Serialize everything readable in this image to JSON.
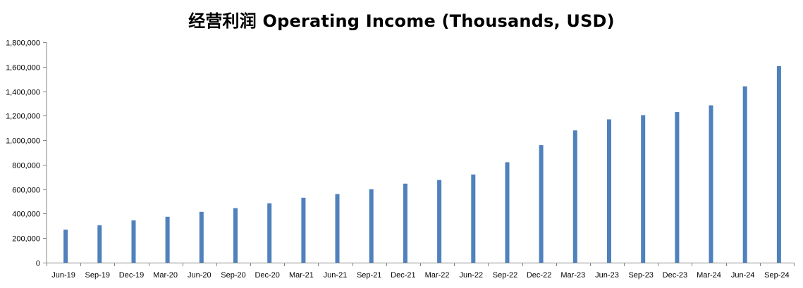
{
  "chart_data": {
    "type": "bar",
    "title": "经营利润 Operating Income (Thousands, USD)",
    "xlabel": "",
    "ylabel": "",
    "ylim": [
      0,
      1800000
    ],
    "yticks": [
      "0",
      "200,000",
      "400,000",
      "600,000",
      "800,000",
      "1,000,000",
      "1,200,000",
      "1,400,000",
      "1,600,000",
      "1,800,000"
    ],
    "ytick_values": [
      0,
      200000,
      400000,
      600000,
      800000,
      1000000,
      1200000,
      1400000,
      1600000,
      1800000
    ],
    "categories": [
      "Jun-19",
      "Sep-19",
      "Dec-19",
      "Mar-20",
      "Jun-20",
      "Sep-20",
      "Dec-20",
      "Mar-21",
      "Jun-21",
      "Sep-21",
      "Dec-21",
      "Mar-22",
      "Jun-22",
      "Sep-22",
      "Dec-22",
      "Mar-23",
      "Jun-23",
      "Sep-23",
      "Dec-23",
      "Mar-24",
      "Jun-24",
      "Sep-24"
    ],
    "values": [
      270000,
      305000,
      345000,
      375000,
      415000,
      445000,
      485000,
      530000,
      560000,
      600000,
      645000,
      675000,
      720000,
      820000,
      960000,
      1080000,
      1170000,
      1205000,
      1230000,
      1285000,
      1440000,
      1605000
    ],
    "grid": false,
    "legend": "none",
    "bar_color": "#4F81BD",
    "axis_color": "#868686"
  }
}
